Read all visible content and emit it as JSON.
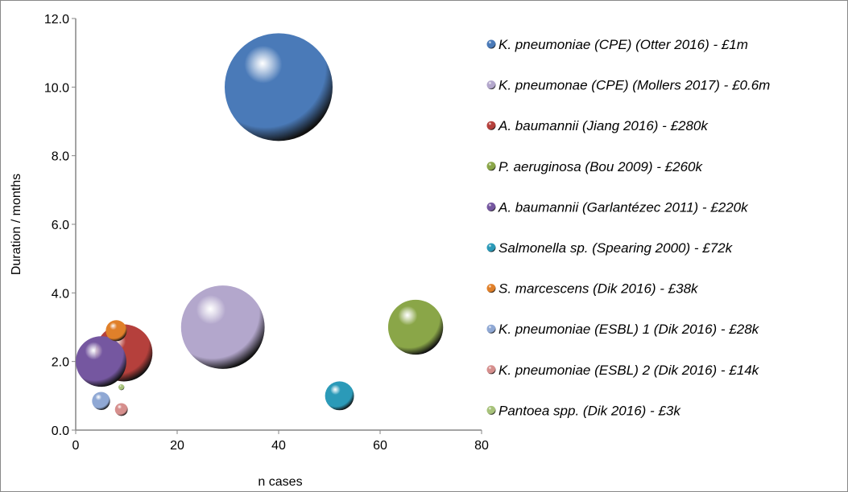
{
  "chart_data": {
    "type": "bubble",
    "title": "",
    "xlabel": "n cases",
    "ylabel": "Duration / months",
    "xlim": [
      0,
      80
    ],
    "ylim": [
      0,
      12
    ],
    "xticks": [
      "0",
      "20",
      "40",
      "60",
      "80"
    ],
    "yticks": [
      "0.0",
      "2.0",
      "4.0",
      "6.0",
      "8.0",
      "10.0",
      "12.0"
    ],
    "grid": false,
    "legend_position": "right",
    "size_unit": "£k",
    "series": [
      {
        "name": "K. pneumoniae (CPE) (Otter 2016) - £1m",
        "x": 40,
        "y": 10.0,
        "size": 1000,
        "color": "#4a7ab8"
      },
      {
        "name": "K. pneumonae (CPE) (Mollers 2017) - £0.6m",
        "x": 29,
        "y": 3.0,
        "size": 600,
        "color": "#b3a7cc"
      },
      {
        "name": "A. baumannii (Jiang 2016) - £280k",
        "x": 9.5,
        "y": 2.25,
        "size": 280,
        "color": "#b5403c"
      },
      {
        "name": "P. aeruginosa (Bou 2009) - £260k",
        "x": 67,
        "y": 3.0,
        "size": 260,
        "color": "#8aa648"
      },
      {
        "name": "A. baumannii (Garlantézec 2011) - £220k",
        "x": 5,
        "y": 2.0,
        "size": 220,
        "color": "#7557a0"
      },
      {
        "name": "Salmonella sp. (Spearing 2000) - £72k",
        "x": 52,
        "y": 1.0,
        "size": 72,
        "color": "#2b9ab8"
      },
      {
        "name": "S. marcescens (Dik 2016) - £38k",
        "x": 8,
        "y": 2.9,
        "size": 38,
        "color": "#e0802a"
      },
      {
        "name": "K. pneumoniae (ESBL) 1 (Dik 2016) - £28k",
        "x": 5,
        "y": 0.85,
        "size": 28,
        "color": "#8fa8d4"
      },
      {
        "name": "K. pneumoniae (ESBL) 2 (Dik 2016) - £14k",
        "x": 9,
        "y": 0.6,
        "size": 14,
        "color": "#d68f8d"
      },
      {
        "name": "Pantoea spp. (Dik 2016) - £3k",
        "x": 9,
        "y": 1.25,
        "size": 3,
        "color": "#a7c27a"
      }
    ]
  }
}
